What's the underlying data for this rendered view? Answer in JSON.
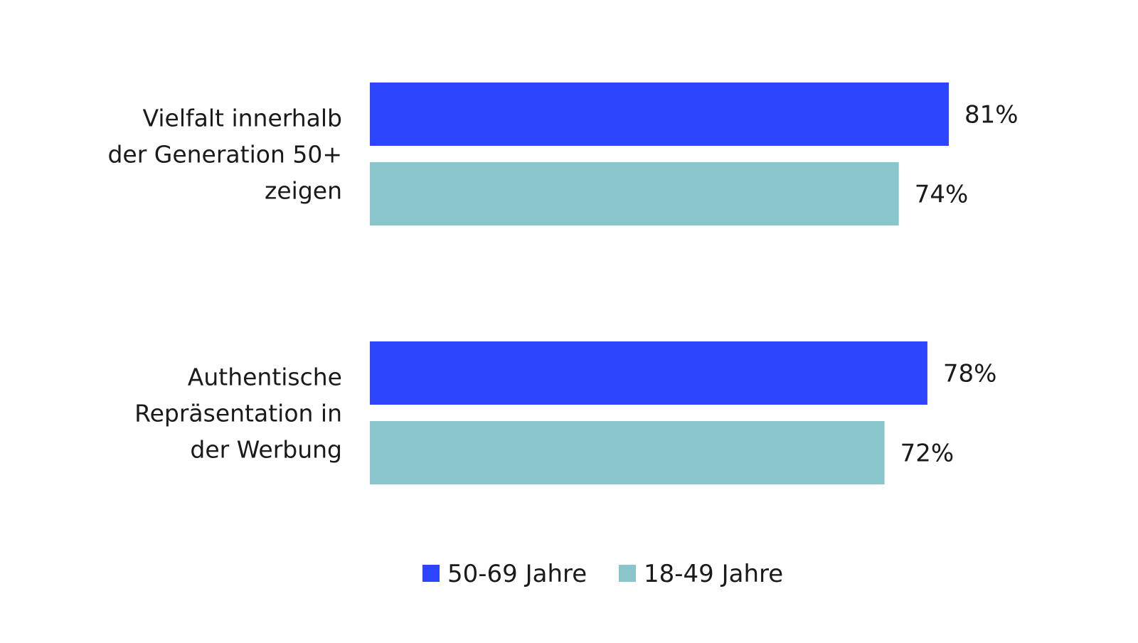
{
  "chart_data": {
    "type": "bar",
    "orientation": "horizontal",
    "categories": [
      [
        "Vielfalt innerhalb",
        "der Generation 50+",
        "zeigen"
      ],
      [
        "Authentische",
        "Repräsentation in",
        "der Werbung"
      ]
    ],
    "series": [
      {
        "name": "50-69 Jahre",
        "color": "#2d45ff",
        "values": [
          81,
          78
        ]
      },
      {
        "name": "18-49 Jahre",
        "color": "#8ac5cc",
        "values": [
          74,
          72
        ]
      }
    ],
    "value_suffix": "%",
    "xlim": [
      0,
      100
    ],
    "grid": false,
    "legend": "bottom-center",
    "title": "",
    "xlabel": "",
    "ylabel": ""
  }
}
